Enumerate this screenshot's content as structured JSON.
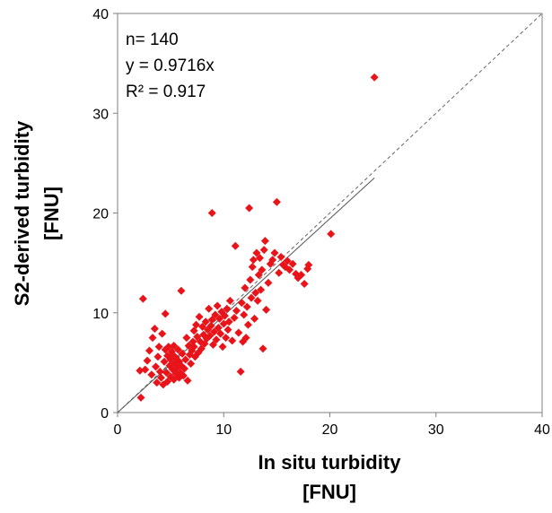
{
  "chart_data": {
    "type": "scatter",
    "title": "",
    "xlabel": "In situ turbidity",
    "xlabel_unit": "[FNU]",
    "ylabel": "S2-derived turbidity",
    "ylabel_unit": "[FNU]",
    "xlim": [
      0,
      40
    ],
    "ylim": [
      0,
      40
    ],
    "xticks": [
      "0",
      "10",
      "20",
      "30",
      "40"
    ],
    "yticks": [
      "0",
      "10",
      "20",
      "30",
      "40"
    ],
    "grid": false,
    "legend": "none",
    "marker": "diamond",
    "marker_color": "#e8141a",
    "annotations": [
      "n= 140",
      "y = 0.9716x",
      "R² = 0.917"
    ],
    "one_to_one_line": {
      "style": "dashed",
      "color": "#666666",
      "from": [
        0,
        0
      ],
      "to": [
        40,
        40
      ]
    },
    "regression_line": {
      "style": "solid",
      "color": "#555555",
      "slope": 0.9716,
      "x_range": [
        0,
        24.2
      ]
    },
    "points": [
      [
        2.2,
        1.5
      ],
      [
        2.1,
        4.2
      ],
      [
        2.4,
        11.4
      ],
      [
        2.6,
        4.3
      ],
      [
        2.8,
        5.2
      ],
      [
        3.0,
        6.2
      ],
      [
        3.2,
        3.8
      ],
      [
        3.3,
        7.5
      ],
      [
        3.5,
        8.4
      ],
      [
        3.6,
        4.6
      ],
      [
        3.7,
        3.0
      ],
      [
        3.8,
        5.6
      ],
      [
        3.9,
        6.6
      ],
      [
        4.0,
        4.1
      ],
      [
        4.1,
        3.5
      ],
      [
        4.2,
        7.9
      ],
      [
        4.3,
        2.8
      ],
      [
        4.4,
        5.1
      ],
      [
        4.5,
        6.3
      ],
      [
        4.5,
        9.9
      ],
      [
        4.6,
        4.0
      ],
      [
        4.7,
        5.7
      ],
      [
        4.7,
        3.1
      ],
      [
        4.8,
        6.6
      ],
      [
        4.9,
        4.7
      ],
      [
        5.0,
        5.3
      ],
      [
        5.0,
        3.6
      ],
      [
        5.1,
        6.1
      ],
      [
        5.2,
        4.3
      ],
      [
        5.2,
        5.8
      ],
      [
        5.3,
        3.3
      ],
      [
        5.3,
        6.7
      ],
      [
        5.4,
        4.9
      ],
      [
        5.5,
        5.5
      ],
      [
        5.5,
        3.9
      ],
      [
        5.6,
        4.5
      ],
      [
        5.7,
        6.3
      ],
      [
        5.8,
        3.5
      ],
      [
        5.8,
        5.1
      ],
      [
        5.9,
        4.0
      ],
      [
        6.0,
        12.2
      ],
      [
        6.0,
        4.7
      ],
      [
        6.1,
        5.9
      ],
      [
        6.2,
        3.7
      ],
      [
        6.3,
        4.4
      ],
      [
        6.4,
        5.3
      ],
      [
        6.5,
        7.5
      ],
      [
        6.6,
        3.2
      ],
      [
        6.7,
        6.7
      ],
      [
        6.8,
        5.8
      ],
      [
        6.9,
        4.9
      ],
      [
        7.0,
        6.2
      ],
      [
        7.1,
        7.1
      ],
      [
        7.2,
        8.2
      ],
      [
        7.2,
        6.6
      ],
      [
        7.3,
        5.6
      ],
      [
        7.4,
        8.8
      ],
      [
        7.5,
        7.6
      ],
      [
        7.6,
        6.0
      ],
      [
        7.7,
        9.6
      ],
      [
        7.8,
        7.1
      ],
      [
        7.9,
        6.4
      ],
      [
        8.0,
        8.6
      ],
      [
        8.1,
        7.8
      ],
      [
        8.2,
        6.9
      ],
      [
        8.3,
        9.1
      ],
      [
        8.4,
        7.4
      ],
      [
        8.5,
        8.3
      ],
      [
        8.6,
        10.4
      ],
      [
        8.7,
        7.7
      ],
      [
        8.8,
        8.7
      ],
      [
        8.9,
        9.3
      ],
      [
        8.9,
        20.0
      ],
      [
        9.0,
        6.8
      ],
      [
        9.1,
        8.1
      ],
      [
        9.2,
        9.8
      ],
      [
        9.3,
        7.3
      ],
      [
        9.4,
        10.7
      ],
      [
        9.5,
        8.5
      ],
      [
        9.6,
        9.4
      ],
      [
        9.7,
        7.9
      ],
      [
        9.8,
        10.1
      ],
      [
        9.9,
        6.6
      ],
      [
        10.0,
        8.9
      ],
      [
        10.1,
        9.7
      ],
      [
        10.2,
        7.5
      ],
      [
        10.3,
        10.4
      ],
      [
        10.4,
        8.3
      ],
      [
        10.5,
        9.1
      ],
      [
        10.6,
        11.2
      ],
      [
        10.8,
        7.2
      ],
      [
        11.0,
        9.5
      ],
      [
        11.1,
        16.7
      ],
      [
        11.2,
        10.2
      ],
      [
        11.4,
        8.0
      ],
      [
        11.6,
        4.1
      ],
      [
        11.7,
        11.0
      ],
      [
        11.8,
        7.1
      ],
      [
        11.9,
        9.8
      ],
      [
        12.0,
        12.5
      ],
      [
        12.1,
        7.5
      ],
      [
        12.2,
        10.6
      ],
      [
        12.3,
        8.8
      ],
      [
        12.4,
        20.5
      ],
      [
        12.5,
        13.3
      ],
      [
        12.6,
        11.5
      ],
      [
        12.7,
        14.6
      ],
      [
        12.8,
        15.3
      ],
      [
        12.9,
        9.4
      ],
      [
        13.0,
        12.0
      ],
      [
        13.1,
        16.0
      ],
      [
        13.2,
        11.2
      ],
      [
        13.3,
        13.8
      ],
      [
        13.4,
        15.5
      ],
      [
        13.5,
        12.3
      ],
      [
        13.6,
        14.3
      ],
      [
        13.7,
        6.4
      ],
      [
        13.8,
        16.3
      ],
      [
        13.9,
        17.2
      ],
      [
        14.0,
        10.3
      ],
      [
        14.2,
        13.0
      ],
      [
        14.4,
        14.9
      ],
      [
        14.6,
        15.3
      ],
      [
        14.8,
        16.0
      ],
      [
        15.0,
        21.1
      ],
      [
        15.2,
        14.0
      ],
      [
        15.4,
        15.6
      ],
      [
        15.6,
        14.8
      ],
      [
        15.8,
        14.6
      ],
      [
        16.0,
        15.2
      ],
      [
        16.2,
        14.3
      ],
      [
        16.5,
        14.9
      ],
      [
        16.8,
        13.9
      ],
      [
        17.0,
        13.5
      ],
      [
        17.3,
        13.8
      ],
      [
        17.6,
        12.9
      ],
      [
        17.9,
        14.4
      ],
      [
        18.0,
        14.8
      ],
      [
        20.1,
        17.9
      ],
      [
        24.2,
        33.6
      ]
    ]
  }
}
